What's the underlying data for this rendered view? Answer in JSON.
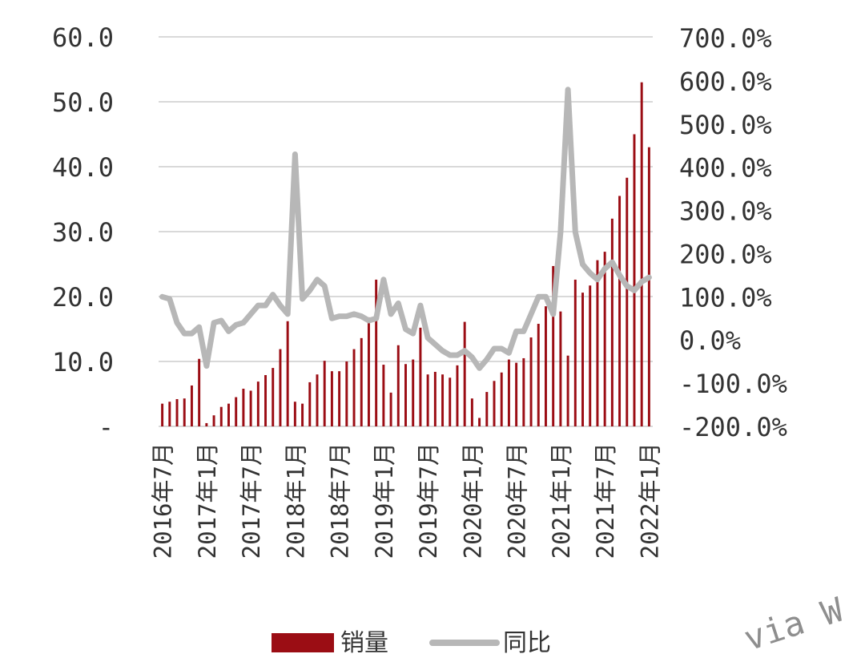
{
  "chart_data": {
    "type": "bar+line",
    "title": "",
    "x_labels": [
      "2016年7月",
      "2017年1月",
      "2017年7月",
      "2018年1月",
      "2018年7月",
      "2019年1月",
      "2019年7月",
      "2020年1月",
      "2020年7月",
      "2021年1月",
      "2021年7月",
      "2022年1月"
    ],
    "y_left": {
      "ticks": [
        "-",
        "10.0",
        "20.0",
        "30.0",
        "40.0",
        "50.0",
        "60.0"
      ],
      "range": [
        0,
        60
      ]
    },
    "y_right": {
      "ticks": [
        "-200.0%",
        "-100.0%",
        "0.0%",
        "100.0%",
        "200.0%",
        "300.0%",
        "400.0%",
        "500.0%",
        "600.0%",
        "700.0%"
      ],
      "range": [
        -200,
        700
      ]
    },
    "grid": true,
    "legend_position": "bottom",
    "series": [
      {
        "name": "销量",
        "type": "bar",
        "axis": "left",
        "color": "#9b0d14",
        "values": [
          3.5,
          3.8,
          4.2,
          4.3,
          6.3,
          10.4,
          0.5,
          1.7,
          3.0,
          3.5,
          4.5,
          5.8,
          5.5,
          6.9,
          7.9,
          9.0,
          11.9,
          16.2,
          3.8,
          3.5,
          6.8,
          8.0,
          10.1,
          8.5,
          8.5,
          10.0,
          11.9,
          13.6,
          16.8,
          22.6,
          9.5,
          5.2,
          12.5,
          9.6,
          10.3,
          15.2,
          8.0,
          8.4,
          8.0,
          7.5,
          9.4,
          16.1,
          4.3,
          1.3,
          5.3,
          7.0,
          8.3,
          10.3,
          9.8,
          10.5,
          13.7,
          15.8,
          18.5,
          24.7,
          17.7,
          10.9,
          22.6,
          20.6,
          21.7,
          25.6,
          26.9,
          32.0,
          35.5,
          38.3,
          45.0,
          53.0,
          43.0
        ]
      },
      {
        "name": "同比",
        "type": "line",
        "axis": "right",
        "color": "#b7b7b7",
        "values": [
          100,
          95,
          40,
          15,
          15,
          30,
          -60,
          40,
          45,
          20,
          35,
          40,
          60,
          80,
          80,
          105,
          80,
          60,
          430,
          95,
          115,
          140,
          125,
          50,
          55,
          55,
          60,
          55,
          45,
          50,
          140,
          60,
          85,
          25,
          15,
          80,
          5,
          -10,
          -25,
          -35,
          -35,
          -25,
          -40,
          -65,
          -45,
          -20,
          -20,
          -30,
          20,
          20,
          60,
          100,
          100,
          60,
          250,
          580,
          250,
          175,
          155,
          140,
          165,
          180,
          150,
          125,
          115,
          135,
          145
        ]
      }
    ]
  },
  "legend": {
    "sales_label": "销量",
    "yoy_label": "同比"
  },
  "watermark": "via W"
}
